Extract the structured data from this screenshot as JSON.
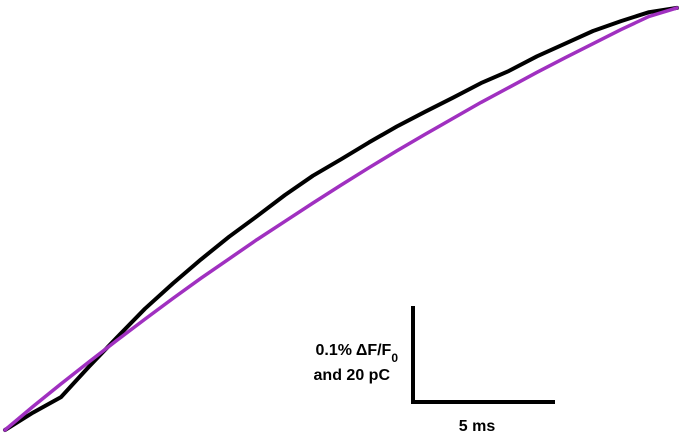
{
  "chart_data": {
    "type": "line",
    "title": "",
    "xlabel": "",
    "ylabel": "",
    "grid": false,
    "axes_visible": false,
    "series": [
      {
        "color": "#000000",
        "x": [
          0,
          1,
          2,
          3,
          4,
          5,
          6,
          7,
          8,
          9,
          10,
          11,
          12,
          13,
          14,
          15,
          16,
          17,
          18,
          19,
          20,
          21,
          22,
          23,
          24
        ],
        "y": [
          0.0,
          0.037,
          0.07,
          0.135,
          0.197,
          0.258,
          0.312,
          0.363,
          0.411,
          0.455,
          0.5,
          0.541,
          0.576,
          0.612,
          0.646,
          0.677,
          0.707,
          0.738,
          0.764,
          0.795,
          0.822,
          0.849,
          0.87,
          0.889,
          0.898
        ]
      },
      {
        "color": "#a030c0",
        "x": [
          0,
          1,
          2,
          3,
          4,
          5,
          6,
          7,
          8,
          9,
          10,
          11,
          12,
          13,
          14,
          15,
          16,
          17,
          18,
          19,
          20,
          21,
          22,
          23,
          24
        ],
        "y": [
          0.0,
          0.05,
          0.098,
          0.145,
          0.191,
          0.236,
          0.28,
          0.323,
          0.364,
          0.405,
          0.444,
          0.483,
          0.521,
          0.558,
          0.594,
          0.629,
          0.663,
          0.697,
          0.729,
          0.761,
          0.792,
          0.822,
          0.852,
          0.88,
          0.898
        ]
      }
    ],
    "scale_bar": {
      "x_label": "5 ms",
      "x_value": 5,
      "y_label_line1": "0.1% ΔF/F",
      "y_label_sub": "0",
      "y_label_line2": "and 20 pC",
      "y_value": 0.1
    }
  }
}
